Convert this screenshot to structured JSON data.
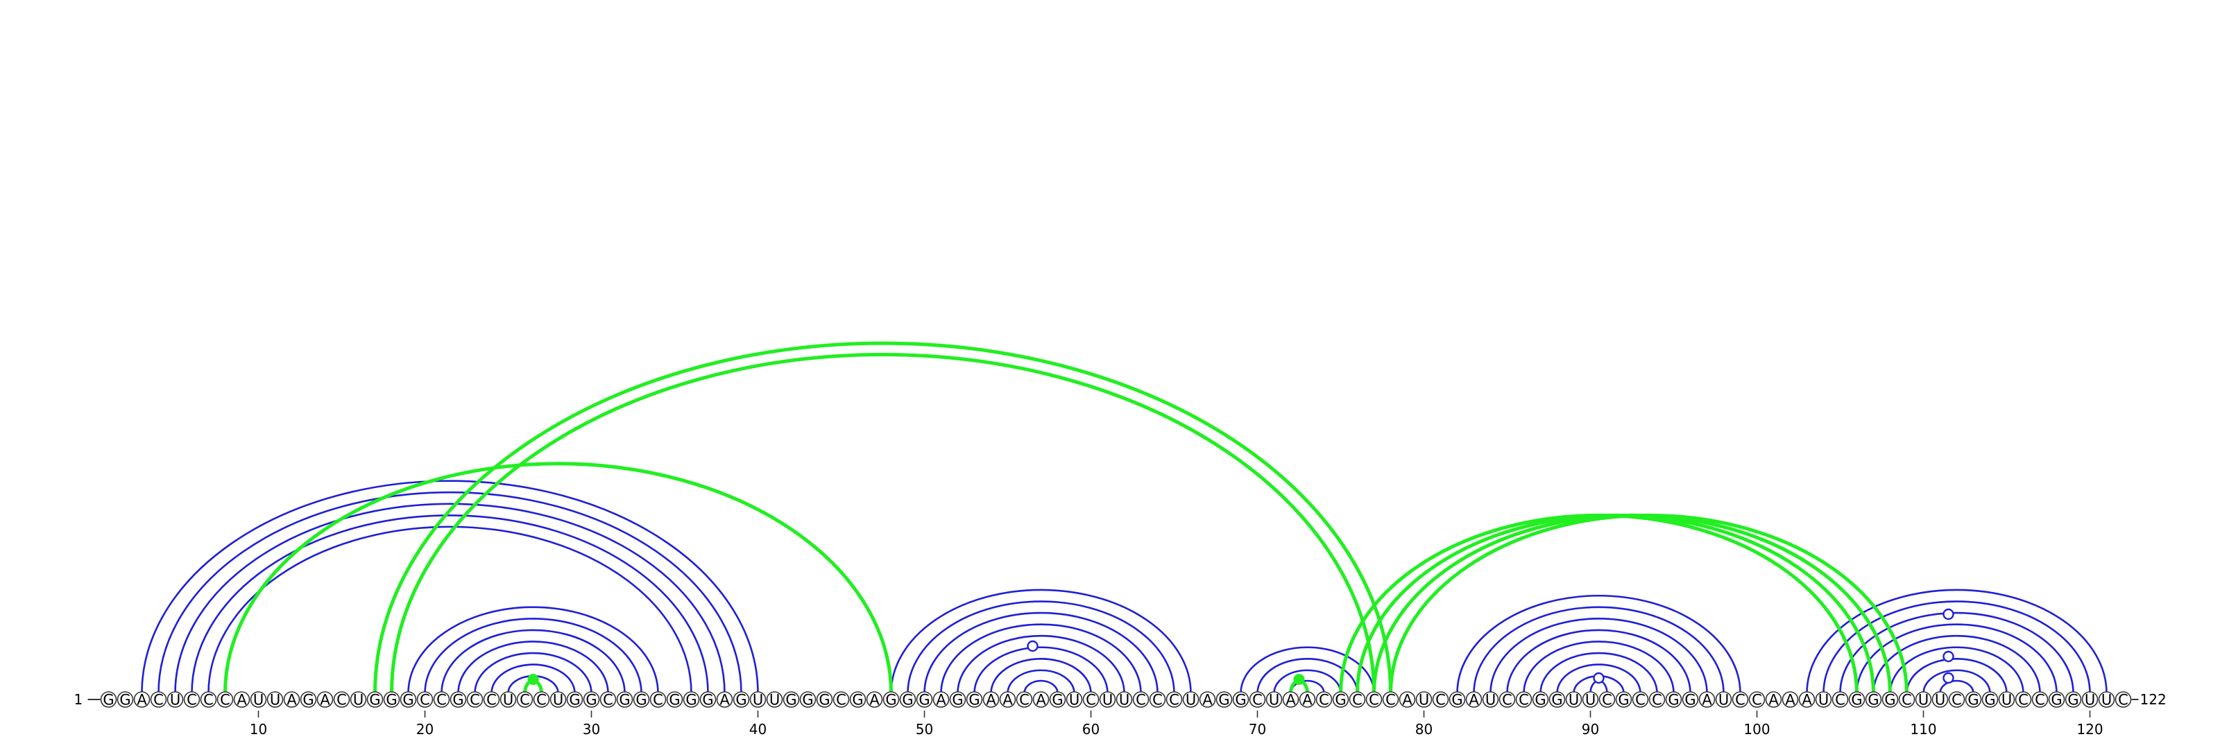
{
  "diagram": {
    "type": "rna-arc-diagram",
    "sequence": "GGACUCCCAUUAGACUGGGCCGCCUCCUGGCGGCGGGAGUUGGGCGAGGGAGGAACAGUCUUCCCUAGGCUAACGCCCAUCGAUCCGGUUCGCCGGAUCCAAAUCGGGCUUCGGUCCGGUUC",
    "length": 122,
    "start_label": "1",
    "end_label": "122",
    "ticks": [
      10,
      20,
      30,
      40,
      50,
      60,
      70,
      80,
      90,
      100,
      110,
      120
    ],
    "colors": {
      "pair_blue": "#1f1fd6",
      "pair_green": "#22ee22",
      "circle_stroke": "#333333",
      "circle_fill": "#ffffff"
    },
    "arc_groups": [
      {
        "color": "blue",
        "pairs": [
          [
            3,
            40
          ],
          [
            4,
            39
          ],
          [
            5,
            38
          ],
          [
            6,
            37
          ],
          [
            7,
            36
          ]
        ]
      },
      {
        "color": "green",
        "pairs": [
          [
            8,
            48
          ]
        ]
      },
      {
        "color": "green",
        "pairs": [
          [
            17,
            78
          ],
          [
            18,
            77
          ]
        ]
      },
      {
        "color": "blue",
        "pairs": [
          [
            19,
            34
          ],
          [
            20,
            33
          ],
          [
            21,
            32
          ],
          [
            22,
            31
          ],
          [
            23,
            30
          ],
          [
            24,
            29
          ],
          [
            25,
            28
          ]
        ]
      },
      {
        "color": "green",
        "pairs": [
          [
            26,
            27
          ]
        ]
      },
      {
        "color": "blue",
        "pairs": [
          [
            48,
            66
          ],
          [
            49,
            65
          ],
          [
            50,
            64
          ],
          [
            51,
            63
          ],
          [
            52,
            62
          ],
          [
            53,
            61
          ],
          [
            54,
            60
          ],
          [
            55,
            59
          ],
          [
            56,
            58
          ]
        ]
      },
      {
        "color": "blue",
        "pairs": [
          [
            69,
            77
          ],
          [
            70,
            76
          ],
          [
            71,
            75
          ],
          [
            72,
            74
          ]
        ]
      },
      {
        "color": "green",
        "pairs": [
          [
            72,
            73
          ]
        ]
      },
      {
        "color": "green",
        "pairs": [
          [
            75,
            106
          ],
          [
            76,
            107
          ],
          [
            77,
            108
          ],
          [
            78,
            109
          ]
        ]
      },
      {
        "color": "blue",
        "pairs": [
          [
            82,
            99
          ],
          [
            83,
            98
          ],
          [
            84,
            97
          ],
          [
            85,
            96
          ],
          [
            86,
            95
          ],
          [
            87,
            94
          ],
          [
            88,
            93
          ],
          [
            89,
            92
          ],
          [
            90,
            91
          ]
        ]
      },
      {
        "color": "blue",
        "pairs": [
          [
            103,
            121
          ],
          [
            104,
            120
          ],
          [
            105,
            119
          ],
          [
            106,
            118
          ],
          [
            107,
            117
          ],
          [
            108,
            116
          ],
          [
            109,
            115
          ],
          [
            110,
            114
          ],
          [
            111,
            113
          ],
          [
            112,
            112
          ]
        ]
      }
    ],
    "markers": [
      {
        "pos": 26.5,
        "style": "green-filled"
      },
      {
        "pos": 56.5,
        "style": "blue-open"
      },
      {
        "pos": 72.5,
        "style": "green-filled"
      },
      {
        "pos": 90.5,
        "style": "blue-open"
      },
      {
        "pos": 111.5,
        "style": "blue-open"
      },
      {
        "pos": 111.5,
        "style": "blue-open",
        "level": 2
      },
      {
        "pos": 111.5,
        "style": "blue-open",
        "level": 3
      }
    ]
  }
}
